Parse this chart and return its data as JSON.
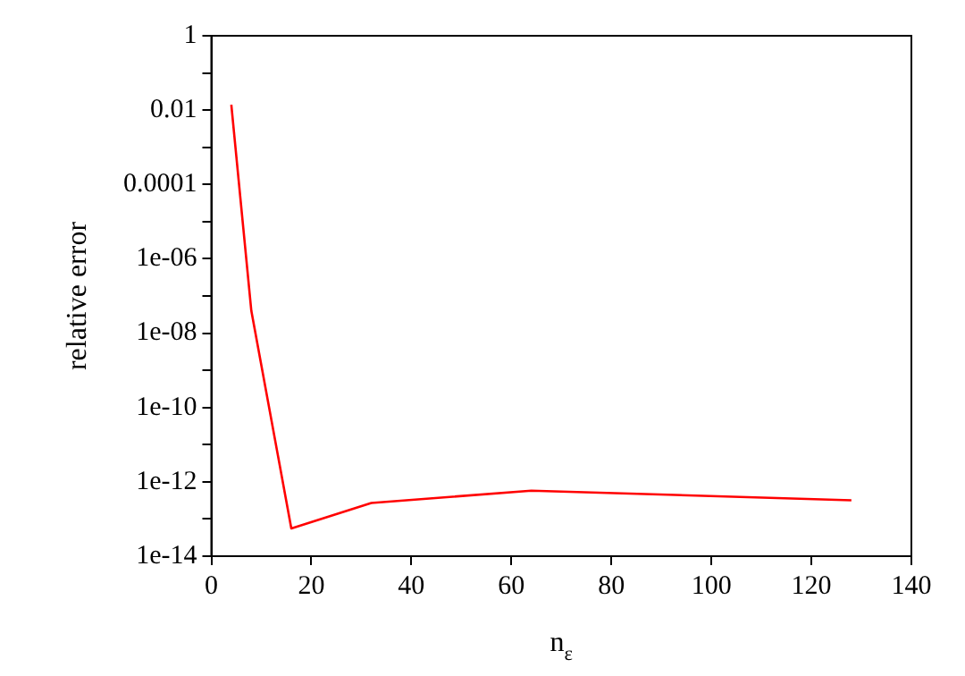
{
  "chart_data": {
    "type": "line",
    "xlabel": "n$_{ε}$",
    "ylabel": "relative error",
    "x": [
      4,
      8,
      16,
      32,
      64,
      128
    ],
    "series": [
      {
        "color": "#ff0000",
        "values": [
          0.014,
          4e-08,
          5.6e-14,
          2.7e-13,
          5.8e-13,
          3.2e-13
        ]
      }
    ],
    "log": "y",
    "xlim": [
      0,
      140
    ],
    "xticks": [
      0,
      20,
      40,
      60,
      80,
      100,
      120,
      140
    ],
    "ylim": [
      1e-14,
      1
    ],
    "yticks": [
      1,
      {
        "value": 0.1,
        "label": null
      },
      0.01,
      {
        "value": 0.001,
        "label": null
      },
      0.0001,
      {
        "value": 1e-05,
        "label": null
      },
      {
        "value": 1e-06,
        "label": "1e-06"
      },
      {
        "value": 1e-07,
        "label": null
      },
      {
        "value": 1e-08,
        "label": "1e-08"
      },
      {
        "value": 1e-09,
        "label": null
      },
      {
        "value": 1e-10,
        "label": "1e-10"
      },
      {
        "value": 1e-11,
        "label": null
      },
      {
        "value": 1e-12,
        "label": "1e-12"
      },
      {
        "value": 1e-13,
        "label": null
      },
      {
        "value": 1e-14,
        "label": "1e-14"
      }
    ],
    "grid": false,
    "legend": false,
    "marker": "none",
    "line_style": "solid"
  }
}
